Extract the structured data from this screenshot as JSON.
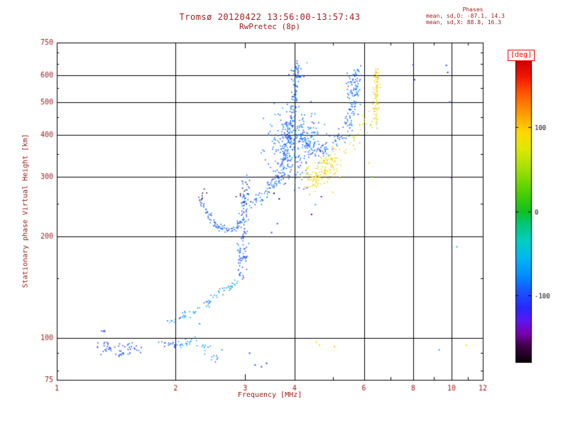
{
  "chart_data": {
    "type": "scatter",
    "title": "Tromsø 20120422 13:56:00-13:57:43",
    "subtitle": "RwPretec (8p)",
    "xlabel": "Frequency [MHz]",
    "ylabel": "Stationary phase Virtual Height [km]",
    "xscale": "log",
    "yscale": "log",
    "xlim": [
      1,
      12
    ],
    "ylim": [
      75,
      750
    ],
    "x_gridlines": [
      2,
      4,
      6,
      8,
      10
    ],
    "y_gridlines": [
      100,
      200,
      300,
      400,
      500,
      600
    ],
    "x_ticks": [
      1,
      2,
      3,
      4,
      5,
      6,
      7,
      8,
      9,
      10,
      11,
      12
    ],
    "x_tick_labels": [
      "1",
      "2",
      "3",
      "4",
      "",
      "6",
      "",
      "8",
      "",
      "10",
      "",
      "12"
    ],
    "y_ticks": [
      75,
      100,
      200,
      300,
      400,
      500,
      600,
      750
    ],
    "y_tick_labels": [
      "75",
      "100",
      "200",
      "300",
      "400",
      "500",
      "600",
      "750"
    ],
    "y_minor_ticks": [
      80,
      90,
      150,
      250,
      350,
      450,
      550,
      650,
      700
    ],
    "phase_stats": {
      "header": "Phases",
      "o_line": "mean, sd,O: -87.1, 14.3",
      "x_line": "mean, sd,X:  88.8, 16.3"
    },
    "colorbar": {
      "label": "[deg]",
      "min": -180,
      "max": 180,
      "ticks": [
        100,
        0,
        -100
      ],
      "stops": [
        [
          -180,
          "#0a0006"
        ],
        [
          -160,
          "#40004a"
        ],
        [
          -145,
          "#7a00b4"
        ],
        [
          -130,
          "#5a18f0"
        ],
        [
          -115,
          "#2828ff"
        ],
        [
          -95,
          "#1855ff"
        ],
        [
          -75,
          "#0090ff"
        ],
        [
          -55,
          "#00b8f0"
        ],
        [
          -35,
          "#00cfc0"
        ],
        [
          -15,
          "#00c878"
        ],
        [
          0,
          "#10c020"
        ],
        [
          25,
          "#55d000"
        ],
        [
          50,
          "#a0e000"
        ],
        [
          75,
          "#e0e800"
        ],
        [
          95,
          "#ffd800"
        ],
        [
          115,
          "#ffa000"
        ],
        [
          140,
          "#ff5a00"
        ],
        [
          160,
          "#f41800"
        ],
        [
          180,
          "#cc0000"
        ]
      ]
    },
    "traces": [
      {
        "name": "e-blob-1",
        "kind": "blob",
        "center": [
          1.35,
          93
        ],
        "spread": [
          0.014,
          0.009
        ],
        "n": 26,
        "phase": [
          -100,
          13
        ]
      },
      {
        "name": "e-blob-1b",
        "kind": "blob",
        "center": [
          1.31,
          104
        ],
        "spread": [
          0.006,
          0.005
        ],
        "n": 5,
        "phase": [
          -95,
          10
        ]
      },
      {
        "name": "e-blob-2",
        "kind": "blob",
        "center": [
          1.5,
          92
        ],
        "spread": [
          0.018,
          0.01
        ],
        "n": 30,
        "phase": [
          -100,
          14
        ]
      },
      {
        "name": "e-blob-3",
        "kind": "blob",
        "center": [
          1.95,
          95
        ],
        "spread": [
          0.016,
          0.008
        ],
        "n": 18,
        "phase": [
          -92,
          12
        ]
      },
      {
        "name": "e-blob-4",
        "kind": "blob",
        "center": [
          2.18,
          97
        ],
        "spread": [
          0.015,
          0.009
        ],
        "n": 16,
        "phase": [
          -62,
          14
        ]
      },
      {
        "name": "e-blob-5",
        "kind": "blob",
        "center": [
          2.38,
          93
        ],
        "spread": [
          0.01,
          0.007
        ],
        "n": 9,
        "phase": [
          -58,
          12
        ]
      },
      {
        "name": "e-blob-6",
        "kind": "blob",
        "center": [
          2.52,
          87
        ],
        "spread": [
          0.008,
          0.006
        ],
        "n": 7,
        "phase": [
          -88,
          10
        ]
      },
      {
        "name": "es-trace",
        "kind": "path",
        "points": [
          [
            1.9,
            110
          ],
          [
            2.15,
            117
          ],
          [
            2.4,
            126
          ],
          [
            2.65,
            138
          ],
          [
            2.88,
            150
          ]
        ],
        "n": 65,
        "jitter": [
          0.005,
          0.006
        ],
        "phase": [
          -72,
          16
        ]
      },
      {
        "name": "ef-cusp-vertical",
        "kind": "path",
        "points": [
          [
            2.93,
            152
          ],
          [
            2.95,
            185
          ],
          [
            2.97,
            215
          ],
          [
            2.99,
            245
          ],
          [
            3.01,
            272
          ],
          [
            3.03,
            292
          ]
        ],
        "n": 115,
        "jitter": [
          0.006,
          0.012
        ],
        "phase": [
          -95,
          13
        ]
      },
      {
        "name": "ef-cusp-dark",
        "kind": "blob",
        "center": [
          2.98,
          262
        ],
        "spread": [
          0.01,
          0.018
        ],
        "n": 12,
        "phase": [
          -168,
          7
        ]
      },
      {
        "name": "valley-u-trace",
        "kind": "path",
        "points": [
          [
            2.31,
            262
          ],
          [
            2.38,
            240
          ],
          [
            2.47,
            224
          ],
          [
            2.58,
            212
          ],
          [
            2.72,
            208
          ],
          [
            2.85,
            213
          ],
          [
            2.96,
            224
          ]
        ],
        "n": 85,
        "jitter": [
          0.004,
          0.005
        ],
        "phase": [
          -92,
          12
        ]
      },
      {
        "name": "u-dark-end",
        "kind": "blob",
        "center": [
          2.33,
          263
        ],
        "spread": [
          0.007,
          0.012
        ],
        "n": 7,
        "phase": [
          -172,
          6
        ]
      },
      {
        "name": "f-trace-rise",
        "kind": "path",
        "points": [
          [
            3.12,
            246
          ],
          [
            3.3,
            262
          ],
          [
            3.5,
            284
          ],
          [
            3.68,
            312
          ],
          [
            3.8,
            348
          ],
          [
            3.9,
            398
          ],
          [
            3.96,
            458
          ],
          [
            4.0,
            520
          ],
          [
            4.03,
            572
          ],
          [
            4.06,
            620
          ],
          [
            4.08,
            648
          ]
        ],
        "n": 185,
        "jitter": [
          0.005,
          0.011
        ],
        "phase": [
          -89,
          13
        ]
      },
      {
        "name": "f-region-cloud",
        "kind": "blob",
        "center": [
          3.92,
          378
        ],
        "spread": [
          0.03,
          0.058
        ],
        "n": 255,
        "phase": [
          -87,
          14
        ]
      },
      {
        "name": "cusp-top-scatter",
        "kind": "blob",
        "center": [
          4.1,
          610
        ],
        "spread": [
          0.012,
          0.02
        ],
        "n": 20,
        "phase": [
          -100,
          18
        ]
      },
      {
        "name": "f2-branch",
        "kind": "path",
        "points": [
          [
            4.12,
            388
          ],
          [
            4.3,
            370
          ],
          [
            4.55,
            359
          ],
          [
            4.8,
            364
          ],
          [
            5.05,
            378
          ],
          [
            5.3,
            400
          ],
          [
            5.45,
            426
          ],
          [
            5.55,
            458
          ],
          [
            5.63,
            500
          ],
          [
            5.68,
            545
          ],
          [
            5.73,
            590
          ],
          [
            5.77,
            628
          ]
        ],
        "n": 170,
        "jitter": [
          0.006,
          0.01
        ],
        "phase": [
          -88,
          13
        ]
      },
      {
        "name": "f2-top-cloud",
        "kind": "blob",
        "center": [
          5.66,
          540
        ],
        "spread": [
          0.01,
          0.032
        ],
        "n": 40,
        "phase": [
          -90,
          14
        ]
      },
      {
        "name": "branch-mid-scatter",
        "kind": "blob",
        "center": [
          4.32,
          412
        ],
        "spread": [
          0.024,
          0.028
        ],
        "n": 40,
        "phase": [
          -84,
          16
        ]
      },
      {
        "name": "x-mode-cluster",
        "kind": "path",
        "points": [
          [
            4.35,
            290
          ],
          [
            4.55,
            303
          ],
          [
            4.75,
            317
          ],
          [
            4.95,
            330
          ],
          [
            5.12,
            342
          ]
        ],
        "n": 150,
        "jitter": [
          0.011,
          0.02
        ],
        "phase": [
          88,
          14
        ]
      },
      {
        "name": "x-mode-mid",
        "kind": "path",
        "points": [
          [
            5.3,
            358
          ],
          [
            5.6,
            388
          ],
          [
            5.9,
            420
          ],
          [
            6.15,
            452
          ]
        ],
        "n": 22,
        "jitter": [
          0.007,
          0.014
        ],
        "phase": [
          90,
          16
        ]
      },
      {
        "name": "x-vertical",
        "kind": "path",
        "points": [
          [
            6.4,
            430
          ],
          [
            6.43,
            475
          ],
          [
            6.45,
            520
          ],
          [
            6.46,
            560
          ],
          [
            6.47,
            600
          ],
          [
            6.49,
            642
          ]
        ],
        "n": 85,
        "jitter": [
          0.004,
          0.011
        ],
        "phase": [
          92,
          15
        ]
      },
      {
        "name": "x-green-scatter",
        "kind": "blob",
        "center": [
          6.25,
          432
        ],
        "spread": [
          0.009,
          0.018
        ],
        "n": 7,
        "phase": [
          35,
          22
        ]
      }
    ],
    "extra_points": [
      [
        3.18,
        83,
        -100
      ],
      [
        3.3,
        82,
        -95
      ],
      [
        3.4,
        84,
        -112
      ],
      [
        2.3,
        110,
        -60
      ],
      [
        2.62,
        92,
        -55
      ],
      [
        3.08,
        90,
        -100
      ],
      [
        4.55,
        97,
        85
      ],
      [
        4.63,
        95,
        92
      ],
      [
        5.05,
        94,
        100
      ],
      [
        3.5,
        205,
        -95
      ],
      [
        3.62,
        218,
        -88
      ],
      [
        3.55,
        268,
        -168
      ],
      [
        3.66,
        258,
        -162
      ],
      [
        4.42,
        232,
        -152
      ],
      [
        4.52,
        248,
        -45
      ],
      [
        4.68,
        262,
        -132
      ],
      [
        5.0,
        270,
        95
      ],
      [
        5.22,
        298,
        100
      ],
      [
        6.18,
        330,
        85
      ],
      [
        6.3,
        300,
        20
      ],
      [
        8.0,
        645,
        -128
      ],
      [
        8.06,
        582,
        -108
      ],
      [
        8.02,
        297,
        -158
      ],
      [
        9.7,
        642,
        -104
      ],
      [
        9.78,
        612,
        -118
      ],
      [
        9.9,
        500,
        -88
      ],
      [
        10.0,
        298,
        -148
      ],
      [
        10.32,
        186,
        -55
      ],
      [
        10.9,
        95,
        95
      ],
      [
        9.3,
        92,
        -62
      ]
    ]
  },
  "colors": {
    "text": "#a12020",
    "frame": "#000000",
    "deg_label": "#ff0000",
    "background": "#ffffff"
  }
}
